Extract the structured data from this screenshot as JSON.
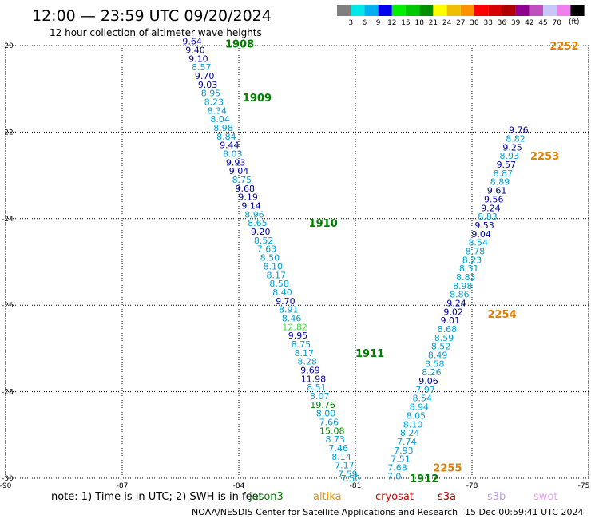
{
  "header": {
    "title": "12:00 — 23:59 UTC 09/20/2024",
    "subtitle": "12 hour collection of altimeter wave heights"
  },
  "colorbar": {
    "unit": "(ft)",
    "colors": [
      "#808080",
      "#00e8e8",
      "#00b0f0",
      "#0000f0",
      "#00f000",
      "#00c800",
      "#009000",
      "#ffff00",
      "#f0c000",
      "#ff9000",
      "#ff0000",
      "#d80000",
      "#b00000",
      "#900090",
      "#c050c0",
      "#c8c8f8",
      "#f080f0",
      "#000000"
    ],
    "ticks": [
      "3",
      "6",
      "9",
      "12",
      "15",
      "18",
      "21",
      "24",
      "27",
      "30",
      "33",
      "36",
      "39",
      "42",
      "45",
      "70"
    ]
  },
  "chart_data": {
    "type": "scatter",
    "xlim": [
      -90,
      -75
    ],
    "ylim": [
      -30,
      -20
    ],
    "x_ticks": [
      "-90",
      "-87",
      "-84",
      "-81",
      "-78",
      "-75"
    ],
    "y_ticks": [
      "-20",
      "-22",
      "-24",
      "-26",
      "-28",
      "-30"
    ],
    "grid": true,
    "tracks": [
      {
        "label_color": "#008000",
        "color": "#00a0d8",
        "points": [
          [
            -85.2,
            -19.9,
            "9.64",
            "#0000a0"
          ],
          [
            -85.12,
            -20.1,
            "9.40",
            "#0000a0"
          ],
          [
            -85.04,
            -20.3,
            "9.10",
            "#0000a0"
          ],
          [
            -84.96,
            -20.5,
            "8.57",
            "#00a0d8"
          ],
          [
            -84.88,
            -20.7,
            "9.70",
            "#0000a0"
          ],
          [
            -84.8,
            -20.9,
            "9.03",
            "#0000a0"
          ],
          [
            -84.72,
            -21.1,
            "8.95",
            "#00a0d8"
          ],
          [
            -84.64,
            -21.3,
            "8.23",
            "#00a0d8"
          ],
          [
            -84.56,
            -21.5,
            "8.34",
            "#00a0d8"
          ],
          [
            -84.48,
            -21.7,
            "8.04",
            "#00a0d8"
          ],
          [
            -84.4,
            -21.9,
            "8.98",
            "#00a0d8"
          ],
          [
            -84.32,
            -22.1,
            "8.84",
            "#00a0d8"
          ],
          [
            -84.24,
            -22.3,
            "9.44",
            "#0000a0"
          ],
          [
            -84.16,
            -22.5,
            "8.03",
            "#00a0d8"
          ],
          [
            -84.08,
            -22.7,
            "9.93",
            "#0000a0"
          ],
          [
            -84.0,
            -22.9,
            "9.04",
            "#0000a0"
          ],
          [
            -83.92,
            -23.1,
            "8.75",
            "#00a0d8"
          ],
          [
            -83.84,
            -23.3,
            "9.68",
            "#0000a0"
          ],
          [
            -83.76,
            -23.5,
            "9.19",
            "#0000a0"
          ],
          [
            -83.68,
            -23.7,
            "9.14",
            "#0000a0"
          ],
          [
            -83.6,
            -23.9,
            "8.96",
            "#00a0d8"
          ],
          [
            -83.52,
            -24.1,
            "8.65",
            "#00a0d8"
          ],
          [
            -83.44,
            -24.3,
            "9.20",
            "#0000a0"
          ],
          [
            -83.36,
            -24.5,
            "8.52",
            "#00a0d8"
          ],
          [
            -83.28,
            -24.7,
            "7.63",
            "#00a0d8"
          ],
          [
            -83.2,
            -24.9,
            "8.50",
            "#00a0d8"
          ],
          [
            -83.12,
            -25.1,
            "8.10",
            "#00a0d8"
          ],
          [
            -83.04,
            -25.3,
            "8.17",
            "#00a0d8"
          ],
          [
            -82.96,
            -25.5,
            "8.58",
            "#00a0d8"
          ],
          [
            -82.88,
            -25.7,
            "8.40",
            "#00a0d8"
          ],
          [
            -82.8,
            -25.9,
            "9.70",
            "#0000a0"
          ],
          [
            -82.72,
            -26.1,
            "8.91",
            "#00a0d8"
          ],
          [
            -82.64,
            -26.3,
            "8.46",
            "#00a0d8"
          ],
          [
            -82.56,
            -26.5,
            "12.82",
            "#40e040"
          ],
          [
            -82.48,
            -26.7,
            "9.95",
            "#0000a0"
          ],
          [
            -82.4,
            -26.9,
            "8.75",
            "#00a0d8"
          ],
          [
            -82.32,
            -27.1,
            "8.17",
            "#00a0d8"
          ],
          [
            -82.24,
            -27.3,
            "8.28",
            "#00a0d8"
          ],
          [
            -82.16,
            -27.5,
            "9.69",
            "#0000a0"
          ],
          [
            -82.08,
            -27.7,
            "11.98",
            "#0000a0"
          ],
          [
            -82.0,
            -27.9,
            "8.51",
            "#00a0d8"
          ],
          [
            -81.92,
            -28.1,
            "8.07",
            "#00a0d8"
          ],
          [
            -81.84,
            -28.3,
            "19.76",
            "#008000"
          ],
          [
            -81.76,
            -28.5,
            "8.00",
            "#00a0d8"
          ],
          [
            -81.68,
            -28.7,
            "7.66",
            "#00a0d8"
          ],
          [
            -81.6,
            -28.9,
            "15.08",
            "#008000"
          ],
          [
            -81.52,
            -29.1,
            "8.73",
            "#00a0d8"
          ],
          [
            -81.44,
            -29.3,
            "7.46",
            "#00a0d8"
          ],
          [
            -81.36,
            -29.5,
            "8.14",
            "#00a0d8"
          ],
          [
            -81.28,
            -29.7,
            "7.17",
            "#00a0d8"
          ],
          [
            -81.2,
            -29.9,
            "7.59",
            "#00a0d8"
          ],
          [
            -81.12,
            -30.0,
            "7.50",
            "#00a0d8"
          ]
        ]
      },
      {
        "label_color": "#e08000",
        "color": "#00a0d8",
        "points": [
          [
            -80.0,
            -29.95,
            "7.0",
            "#00a0d8"
          ],
          [
            -79.92,
            -29.75,
            "7.68",
            "#00a0d8"
          ],
          [
            -79.84,
            -29.55,
            "7.51",
            "#00a0d8"
          ],
          [
            -79.76,
            -29.35,
            "7.93",
            "#00a0d8"
          ],
          [
            -79.68,
            -29.15,
            "7.74",
            "#00a0d8"
          ],
          [
            -79.6,
            -28.95,
            "8.24",
            "#00a0d8"
          ],
          [
            -79.52,
            -28.75,
            "8.10",
            "#00a0d8"
          ],
          [
            -79.44,
            -28.55,
            "8.05",
            "#00a0d8"
          ],
          [
            -79.36,
            -28.35,
            "8.94",
            "#00a0d8"
          ],
          [
            -79.28,
            -28.15,
            "8.54",
            "#00a0d8"
          ],
          [
            -79.2,
            -27.95,
            "7.97",
            "#00a0d8"
          ],
          [
            -79.12,
            -27.75,
            "9.06",
            "#0000a0"
          ],
          [
            -79.04,
            -27.55,
            "8.26",
            "#00a0d8"
          ],
          [
            -78.96,
            -27.35,
            "8.58",
            "#00a0d8"
          ],
          [
            -78.88,
            -27.15,
            "8.49",
            "#00a0d8"
          ],
          [
            -78.8,
            -26.95,
            "8.52",
            "#00a0d8"
          ],
          [
            -78.72,
            -26.75,
            "8.59",
            "#00a0d8"
          ],
          [
            -78.64,
            -26.55,
            "8.68",
            "#00a0d8"
          ],
          [
            -78.56,
            -26.35,
            "9.01",
            "#0000a0"
          ],
          [
            -78.48,
            -26.15,
            "9.02",
            "#0000a0"
          ],
          [
            -78.4,
            -25.95,
            "9.24",
            "#0000a0"
          ],
          [
            -78.32,
            -25.75,
            "8.86",
            "#00a0d8"
          ],
          [
            -78.24,
            -25.55,
            "8.98",
            "#00a0d8"
          ],
          [
            -78.16,
            -25.35,
            "8.83",
            "#00a0d8"
          ],
          [
            -78.08,
            -25.15,
            "8.31",
            "#00a0d8"
          ],
          [
            -78.0,
            -24.95,
            "8.23",
            "#00a0d8"
          ],
          [
            -77.92,
            -24.75,
            "8.78",
            "#00a0d8"
          ],
          [
            -77.84,
            -24.55,
            "8.54",
            "#00a0d8"
          ],
          [
            -77.76,
            -24.35,
            "9.04",
            "#0000a0"
          ],
          [
            -77.68,
            -24.15,
            "9.53",
            "#0000a0"
          ],
          [
            -77.6,
            -23.95,
            "8.83",
            "#00a0d8"
          ],
          [
            -77.52,
            -23.75,
            "9.24",
            "#0000a0"
          ],
          [
            -77.44,
            -23.55,
            "9.56",
            "#0000a0"
          ],
          [
            -77.36,
            -23.35,
            "9.61",
            "#0000a0"
          ],
          [
            -77.28,
            -23.15,
            "8.89",
            "#00a0d8"
          ],
          [
            -77.2,
            -22.95,
            "8.87",
            "#00a0d8"
          ],
          [
            -77.12,
            -22.75,
            "9.57",
            "#0000a0"
          ],
          [
            -77.04,
            -22.55,
            "8.93",
            "#00a0d8"
          ],
          [
            -76.96,
            -22.35,
            "9.25",
            "#0000a0"
          ],
          [
            -76.88,
            -22.15,
            "8.82",
            "#00a0d8"
          ],
          [
            -76.8,
            -21.95,
            "9.76",
            "#0000a0"
          ]
        ]
      }
    ],
    "time_labels": [
      {
        "text": "1908",
        "x": -84.35,
        "y": -19.95,
        "color": "#008000"
      },
      {
        "text": "1909",
        "x": -83.9,
        "y": -21.2,
        "color": "#008000"
      },
      {
        "text": "1910",
        "x": -82.2,
        "y": -24.1,
        "color": "#008000"
      },
      {
        "text": "1911",
        "x": -81.0,
        "y": -27.1,
        "color": "#008000"
      },
      {
        "text": "1912",
        "x": -79.6,
        "y": -30.0,
        "color": "#008000"
      },
      {
        "text": "2252",
        "x": -76.0,
        "y": -20.0,
        "color": "#e08000"
      },
      {
        "text": "2253",
        "x": -76.5,
        "y": -22.55,
        "color": "#e08000"
      },
      {
        "text": "2254",
        "x": -77.6,
        "y": -26.2,
        "color": "#e08000"
      },
      {
        "text": "2255",
        "x": -79.0,
        "y": -29.75,
        "color": "#e08000"
      }
    ]
  },
  "footer": {
    "note": "note: 1) Time is in UTC; 2) SWH is in feet",
    "satellites": [
      {
        "name": "jason3",
        "color": "#008000"
      },
      {
        "name": "altika",
        "color": "#ff9000"
      },
      {
        "name": "cryosat",
        "color": "#e00000"
      },
      {
        "name": "s3a",
        "color": "#a00000"
      },
      {
        "name": "s3b",
        "color": "#c0a0f0"
      },
      {
        "name": "swot",
        "color": "#f0a0f0"
      }
    ],
    "credit": "NOAA/NESDIS Center for Satellite Applications and Research",
    "timestamp": "15 Dec 00:59:41 UTC 2024"
  }
}
